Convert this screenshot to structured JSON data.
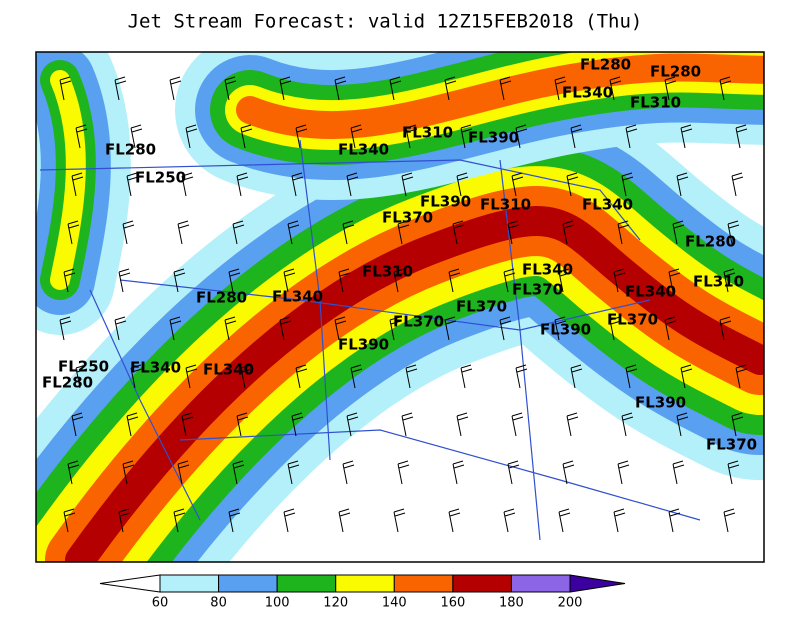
{
  "title": "Jet Stream Forecast:  valid 12Z15FEB2018 (Thu)",
  "flight_levels": [
    "FL280",
    "FL280",
    "FL340",
    "FL310",
    "FL310",
    "FL390",
    "FL340",
    "FL280",
    "FL250",
    "FL390",
    "FL310",
    "FL370",
    "FL340",
    "FL280",
    "FL310",
    "FL340",
    "FL370",
    "FL310",
    "FL340",
    "FL280",
    "FL340",
    "FL370",
    "FL370",
    "FL390",
    "FL370",
    "FL390",
    "FL250",
    "FL280",
    "FL340",
    "FL340",
    "FL390",
    "FL370"
  ],
  "legend": {
    "ticks": [
      60,
      80,
      100,
      120,
      140,
      160,
      180,
      200
    ],
    "colors": [
      "#ffffff",
      "#b4f0fa",
      "#5aa0f0",
      "#1eb41e",
      "#fafa00",
      "#fa6400",
      "#b40000",
      "#8c64e6",
      "#3c00a0"
    ]
  }
}
